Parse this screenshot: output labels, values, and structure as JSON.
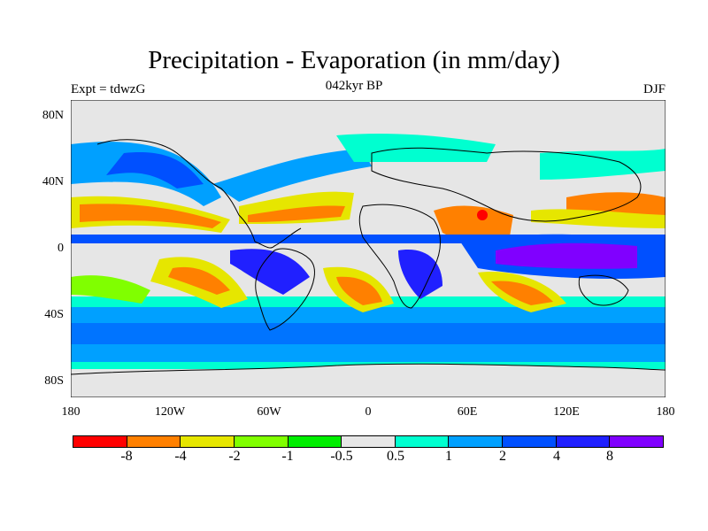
{
  "title": "Precipitation - Evaporation (in mm/day)",
  "subtitle": "042kyr BP",
  "left_label": "Expt = tdwzG",
  "right_label": "DJF",
  "lat_ticks": [
    "80N",
    "40N",
    "0",
    "40S",
    "80S"
  ],
  "lon_ticks": [
    "180",
    "120W",
    "60W",
    "0",
    "60E",
    "120E",
    "180"
  ],
  "colorbar": {
    "colors": [
      "#ff0000",
      "#ff8000",
      "#e6e600",
      "#80ff00",
      "#00ee00",
      "#e6e6e6",
      "#00ffd0",
      "#00a0ff",
      "#0050ff",
      "#2020ff",
      "#8000ff"
    ],
    "labels": [
      "-8",
      "-4",
      "-2",
      "-1",
      "-0.5",
      "0.5",
      "1",
      "2",
      "4",
      "8"
    ]
  },
  "chart_data": {
    "type": "heatmap",
    "title": "Precipitation - Evaporation (in mm/day)",
    "subtitle": "042kyr BP",
    "experiment": "Expt = tdwzG",
    "season": "DJF",
    "x_range": [
      -180,
      180
    ],
    "y_range": [
      -90,
      90
    ],
    "levels": [
      -8,
      -4,
      -2,
      -1,
      -0.5,
      0.5,
      1,
      2,
      4,
      8
    ]
  }
}
